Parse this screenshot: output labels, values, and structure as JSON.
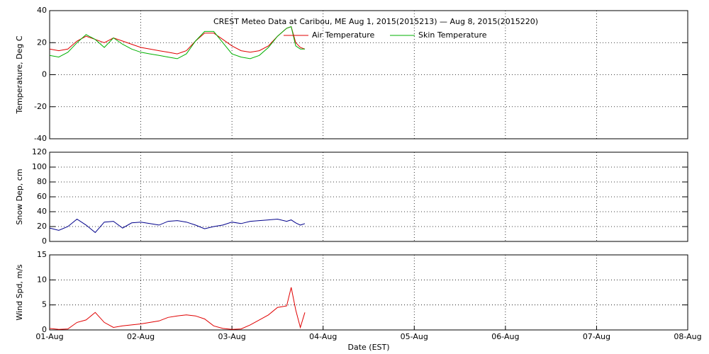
{
  "chart_data": [
    {
      "type": "line",
      "title": "CREST Meteo Data at Caribou, ME   Aug  1, 2015(2015213) — Aug  8, 2015(2015220)",
      "ylabel": "Temperature, Deg C",
      "x": [
        0,
        0.1,
        0.2,
        0.3,
        0.4,
        0.5,
        0.6,
        0.7,
        0.8,
        0.9,
        1.0,
        1.1,
        1.2,
        1.3,
        1.4,
        1.5,
        1.6,
        1.7,
        1.8,
        1.9,
        2.0,
        2.1,
        2.2,
        2.3,
        2.4,
        2.5,
        2.6,
        2.65,
        2.7,
        2.75,
        2.8
      ],
      "series": [
        {
          "name": "Air Temperature",
          "color": "#e00000",
          "values": [
            16,
            15,
            16,
            21,
            24,
            22,
            20,
            23,
            21,
            19,
            17,
            16,
            15,
            14,
            13,
            15,
            21,
            26,
            26,
            22,
            18,
            15,
            14,
            15,
            18,
            24,
            29,
            30,
            20,
            17,
            16
          ]
        },
        {
          "name": "Skin Temperature",
          "color": "#00b000",
          "values": [
            12,
            11,
            14,
            20,
            25,
            22,
            17,
            23,
            19,
            16,
            14,
            13,
            12,
            11,
            10,
            13,
            21,
            27,
            27,
            20,
            13,
            11,
            10,
            12,
            17,
            24,
            29,
            30,
            18,
            16,
            16
          ]
        }
      ],
      "xlim": [
        0,
        7
      ],
      "xticks": [
        0,
        1,
        2,
        3,
        4,
        5,
        6,
        7
      ],
      "ylim": [
        -40,
        40
      ],
      "yticks": [
        -40,
        -20,
        0,
        20,
        40
      ],
      "grid": true
    },
    {
      "type": "line",
      "ylabel": "Snow Dep, cm",
      "x": [
        0,
        0.1,
        0.2,
        0.3,
        0.4,
        0.5,
        0.6,
        0.7,
        0.8,
        0.9,
        1.0,
        1.1,
        1.2,
        1.3,
        1.4,
        1.5,
        1.6,
        1.7,
        1.8,
        1.9,
        2.0,
        2.1,
        2.2,
        2.3,
        2.4,
        2.5,
        2.6,
        2.65,
        2.7,
        2.75,
        2.8
      ],
      "series": [
        {
          "name": "Snow Depth",
          "color": "#00008b",
          "values": [
            18,
            15,
            20,
            30,
            22,
            12,
            26,
            27,
            18,
            25,
            26,
            24,
            22,
            27,
            28,
            26,
            22,
            17,
            20,
            22,
            26,
            24,
            27,
            28,
            29,
            30,
            27,
            29,
            25,
            22,
            24
          ]
        }
      ],
      "xlim": [
        0,
        7
      ],
      "xticks": [
        0,
        1,
        2,
        3,
        4,
        5,
        6,
        7
      ],
      "ylim": [
        0,
        120
      ],
      "yticks": [
        0,
        20,
        40,
        60,
        80,
        100,
        120
      ],
      "grid": true
    },
    {
      "type": "line",
      "ylabel": "Wind Spd, m/s",
      "xlabel": "Date (EST)",
      "x": [
        0,
        0.1,
        0.2,
        0.3,
        0.4,
        0.5,
        0.6,
        0.7,
        0.8,
        0.9,
        1.0,
        1.1,
        1.2,
        1.3,
        1.4,
        1.5,
        1.6,
        1.7,
        1.8,
        1.9,
        2.0,
        2.1,
        2.2,
        2.3,
        2.4,
        2.5,
        2.6,
        2.65,
        2.7,
        2.75,
        2.8
      ],
      "series": [
        {
          "name": "Wind Speed",
          "color": "#e00000",
          "values": [
            0.3,
            0.1,
            0.2,
            1.5,
            2,
            3.5,
            1.5,
            0.5,
            0.8,
            1,
            1.2,
            1.5,
            1.8,
            2.5,
            2.8,
            3,
            2.8,
            2.2,
            0.8,
            0.3,
            0.1,
            0.2,
            1,
            2,
            3,
            4.5,
            4.8,
            8.5,
            4,
            0.5,
            3.5
          ]
        }
      ],
      "xlim": [
        0,
        7
      ],
      "xticks": [
        {
          "value": 0,
          "label": "01-Aug"
        },
        {
          "value": 1,
          "label": "02-Aug"
        },
        {
          "value": 2,
          "label": "03-Aug"
        },
        {
          "value": 3,
          "label": "04-Aug"
        },
        {
          "value": 4,
          "label": "05-Aug"
        },
        {
          "value": 5,
          "label": "06-Aug"
        },
        {
          "value": 6,
          "label": "07-Aug"
        },
        {
          "value": 7,
          "label": "08-Aug"
        }
      ],
      "ylim": [
        0,
        15
      ],
      "yticks": [
        0,
        5,
        10,
        15
      ],
      "grid": true
    }
  ]
}
